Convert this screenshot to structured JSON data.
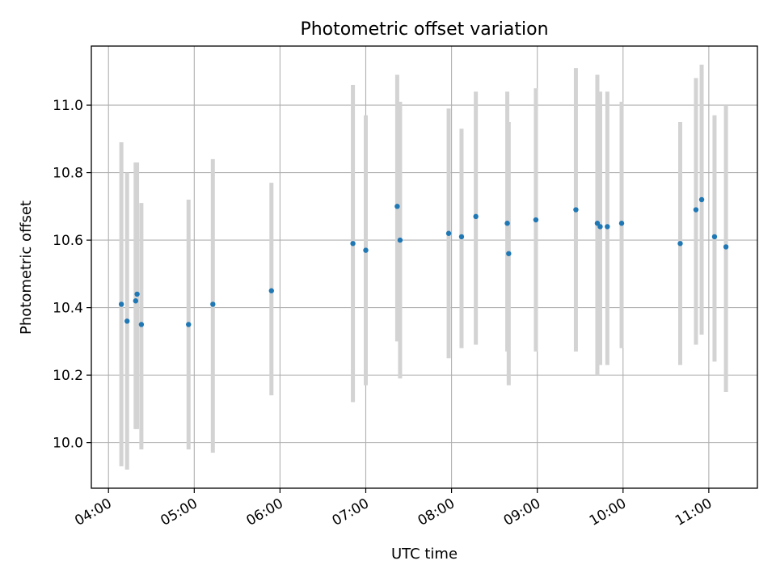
{
  "chart_data": {
    "type": "scatter",
    "title": "Photometric offset variation",
    "xlabel": "UTC time",
    "ylabel": "Photometric offset",
    "x_unit": "UTC time (HH:MM)",
    "xlim": [
      "03:48",
      "11:34"
    ],
    "ylim": [
      9.865,
      11.175
    ],
    "x_ticks": [
      "04:00",
      "05:00",
      "06:00",
      "07:00",
      "08:00",
      "09:00",
      "10:00",
      "11:00"
    ],
    "y_ticks": [
      "10.0",
      "10.2",
      "10.4",
      "10.6",
      "10.8",
      "11.0"
    ],
    "grid": true,
    "legend": "none",
    "colors": {
      "marker": "#1f77b4",
      "error_bar": "#d3d3d3",
      "grid": "#b0b0b0"
    },
    "series": [
      {
        "points": [
          {
            "x": "04:09",
            "y": 10.41,
            "y_low": 9.93,
            "y_high": 10.89
          },
          {
            "x": "04:13",
            "y": 10.36,
            "y_low": 9.92,
            "y_high": 10.8
          },
          {
            "x": "04:19",
            "y": 10.42,
            "y_low": 10.04,
            "y_high": 10.83
          },
          {
            "x": "04:20",
            "y": 10.44,
            "y_low": 10.04,
            "y_high": 10.83
          },
          {
            "x": "04:23",
            "y": 10.35,
            "y_low": 9.98,
            "y_high": 10.71
          },
          {
            "x": "04:56",
            "y": 10.35,
            "y_low": 9.98,
            "y_high": 10.72
          },
          {
            "x": "05:13",
            "y": 10.41,
            "y_low": 9.97,
            "y_high": 10.84
          },
          {
            "x": "05:54",
            "y": 10.45,
            "y_low": 10.14,
            "y_high": 10.77
          },
          {
            "x": "06:51",
            "y": 10.59,
            "y_low": 10.12,
            "y_high": 11.06
          },
          {
            "x": "07:00",
            "y": 10.57,
            "y_low": 10.17,
            "y_high": 10.97
          },
          {
            "x": "07:22",
            "y": 10.7,
            "y_low": 10.3,
            "y_high": 11.09
          },
          {
            "x": "07:24",
            "y": 10.6,
            "y_low": 10.19,
            "y_high": 11.01
          },
          {
            "x": "07:58",
            "y": 10.62,
            "y_low": 10.25,
            "y_high": 10.99
          },
          {
            "x": "08:07",
            "y": 10.61,
            "y_low": 10.28,
            "y_high": 10.93
          },
          {
            "x": "08:17",
            "y": 10.67,
            "y_low": 10.29,
            "y_high": 11.04
          },
          {
            "x": "08:39",
            "y": 10.65,
            "y_low": 10.27,
            "y_high": 11.04
          },
          {
            "x": "08:40",
            "y": 10.56,
            "y_low": 10.17,
            "y_high": 10.95
          },
          {
            "x": "08:59",
            "y": 10.66,
            "y_low": 10.27,
            "y_high": 11.05
          },
          {
            "x": "09:27",
            "y": 10.69,
            "y_low": 10.27,
            "y_high": 11.11
          },
          {
            "x": "09:42",
            "y": 10.65,
            "y_low": 10.2,
            "y_high": 11.09
          },
          {
            "x": "09:44",
            "y": 10.64,
            "y_low": 10.23,
            "y_high": 11.04
          },
          {
            "x": "09:49",
            "y": 10.64,
            "y_low": 10.23,
            "y_high": 11.04
          },
          {
            "x": "09:59",
            "y": 10.65,
            "y_low": 10.28,
            "y_high": 11.01
          },
          {
            "x": "10:40",
            "y": 10.59,
            "y_low": 10.23,
            "y_high": 10.95
          },
          {
            "x": "10:51",
            "y": 10.69,
            "y_low": 10.29,
            "y_high": 11.08
          },
          {
            "x": "10:55",
            "y": 10.72,
            "y_low": 10.32,
            "y_high": 11.12
          },
          {
            "x": "11:04",
            "y": 10.61,
            "y_low": 10.24,
            "y_high": 10.97
          },
          {
            "x": "11:12",
            "y": 10.58,
            "y_low": 10.15,
            "y_high": 11.0
          }
        ]
      }
    ]
  }
}
